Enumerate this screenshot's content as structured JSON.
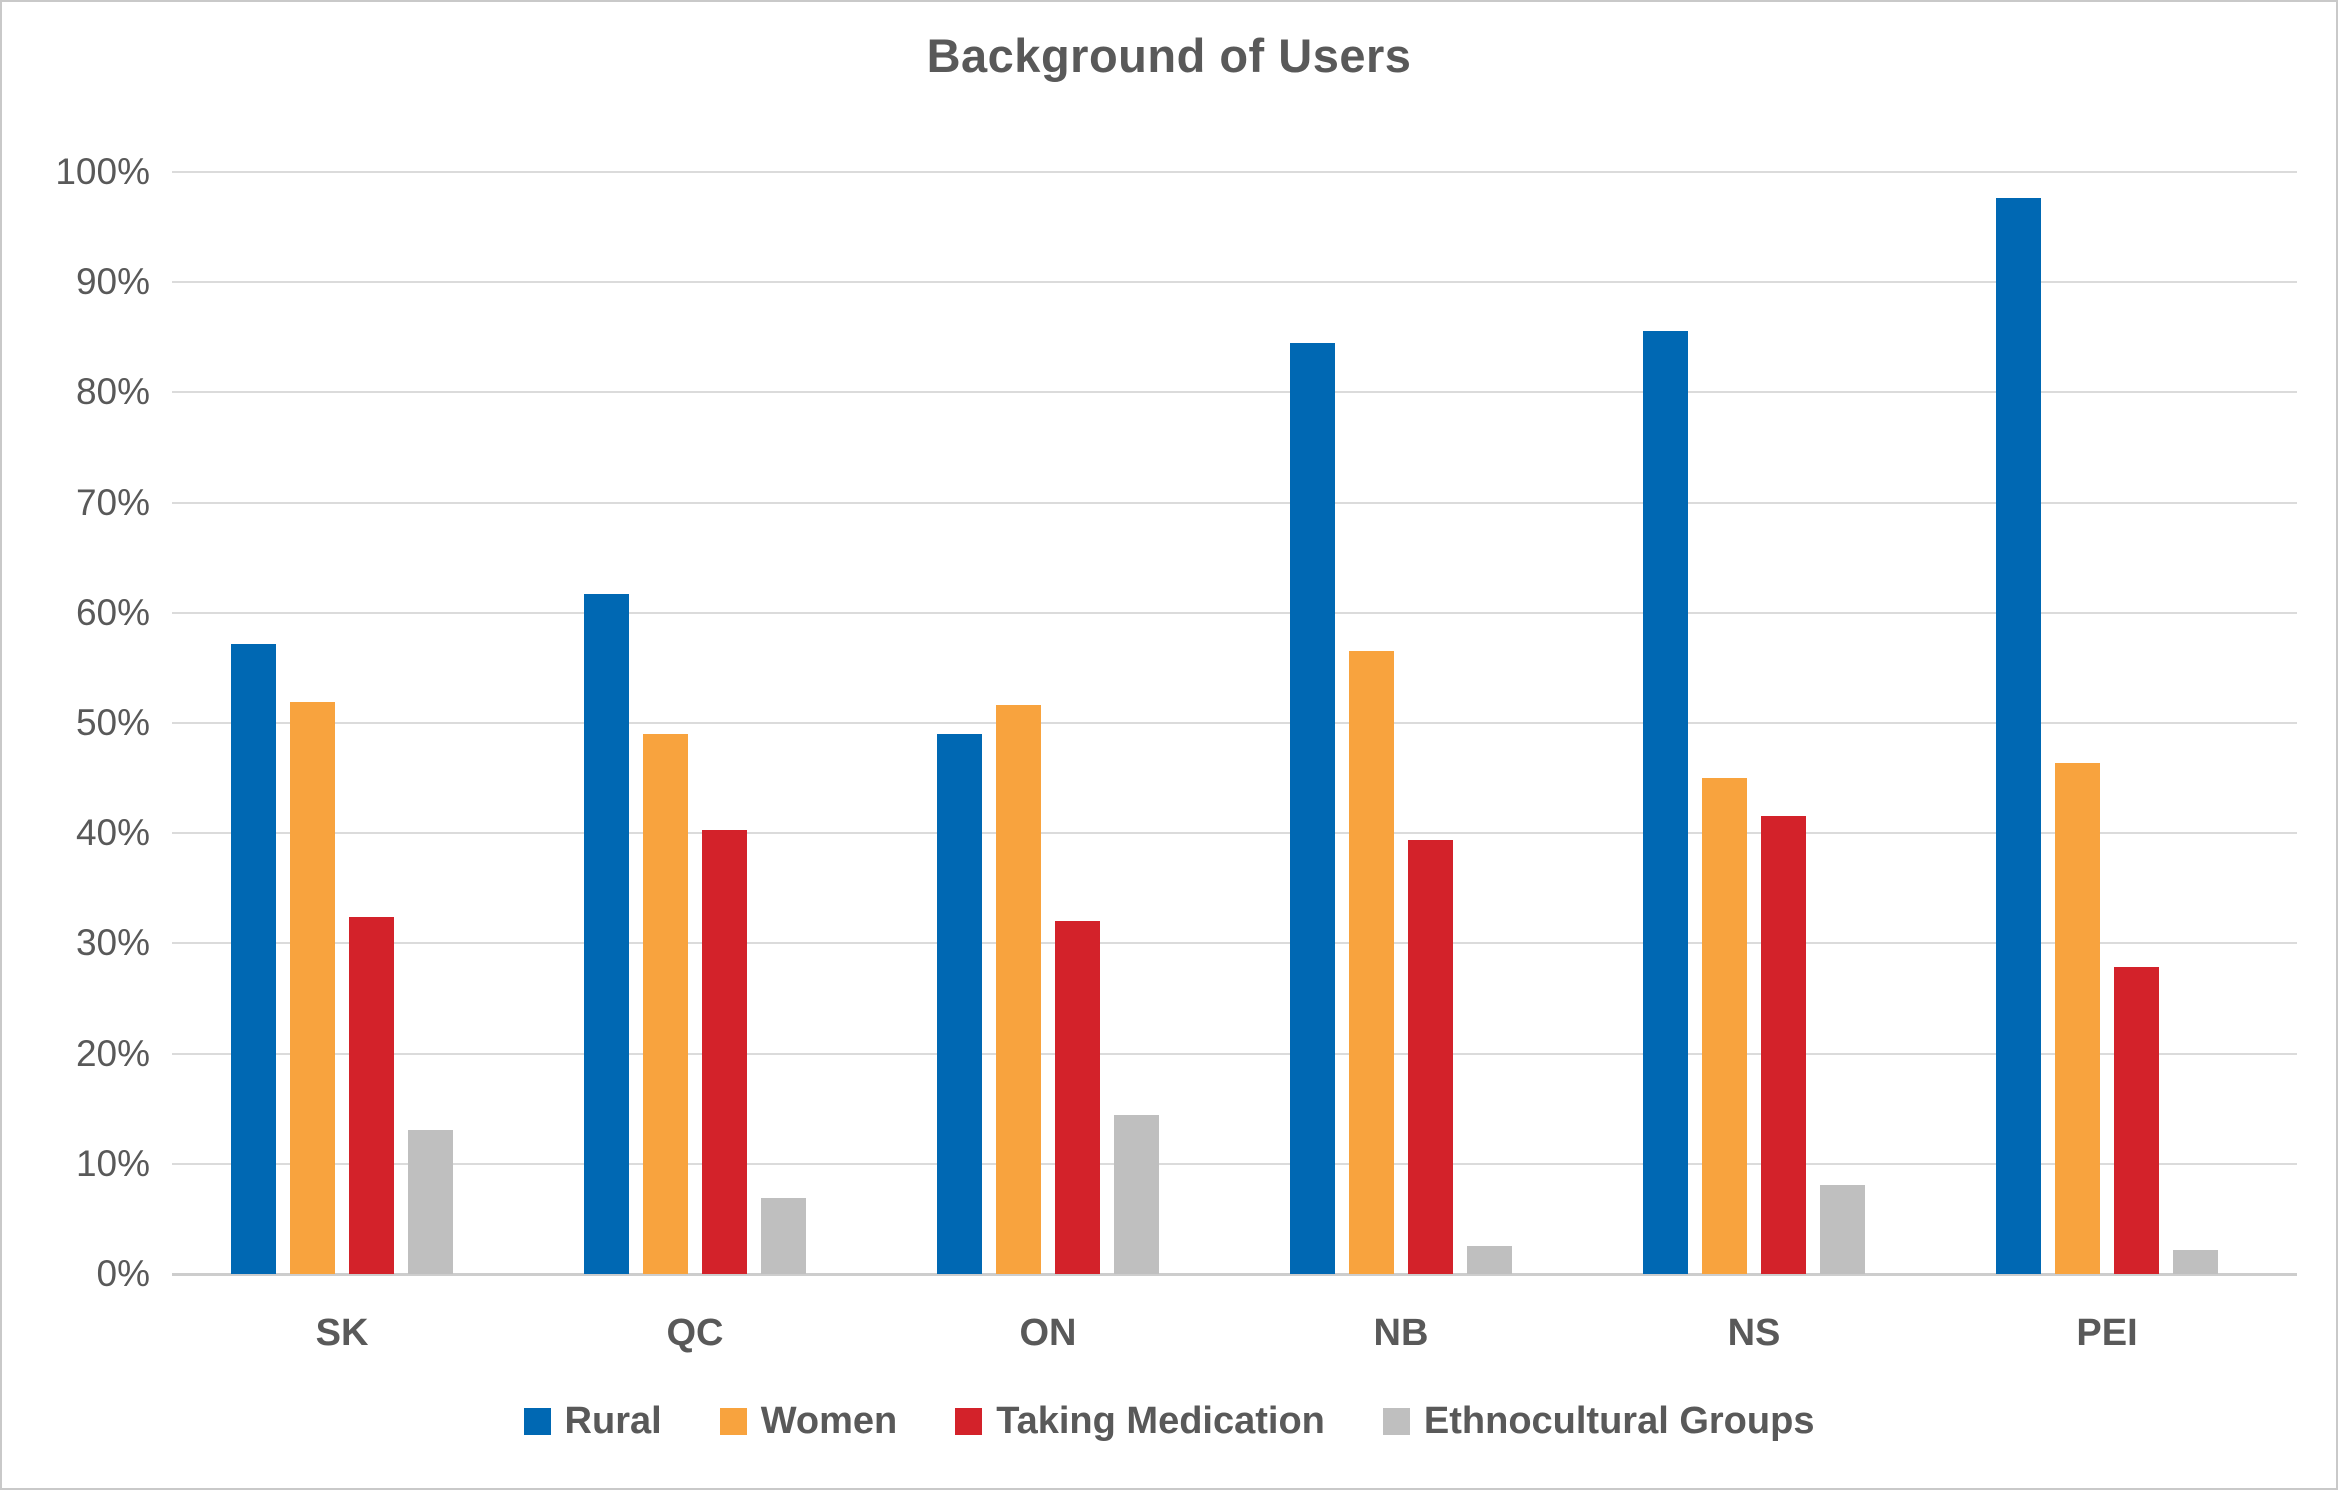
{
  "title": "Background of Users",
  "colors": {
    "rural_blue": "#0068B3",
    "women_orange": "#F8A33E",
    "medication_red": "#D3222A",
    "ethnocultural_gray": "#BFBFBF",
    "gridline": "#DBDBDB",
    "axis_line": "#CDCDCD",
    "text": "#595959"
  },
  "y_axis": {
    "min": 0,
    "max": 100,
    "step": 10,
    "tick_labels": [
      "0%",
      "10%",
      "20%",
      "30%",
      "40%",
      "50%",
      "60%",
      "70%",
      "80%",
      "90%",
      "100%"
    ]
  },
  "chart_data": {
    "type": "bar",
    "title": "Background of Users",
    "categories": [
      "SK",
      "QC",
      "ON",
      "NB",
      "NS",
      "PEI"
    ],
    "series": [
      {
        "name": "Rural",
        "color": "#0068B3",
        "values": [
          57.2,
          61.7,
          49.0,
          84.5,
          85.6,
          97.6
        ]
      },
      {
        "name": "Women",
        "color": "#F8A33E",
        "values": [
          51.9,
          49.0,
          51.6,
          56.5,
          45.0,
          46.4
        ]
      },
      {
        "name": "Taking Medication",
        "color": "#D3222A",
        "values": [
          32.4,
          40.3,
          32.0,
          39.4,
          41.6,
          27.9
        ]
      },
      {
        "name": "Ethnocultural Groups",
        "color": "#BFBFBF",
        "values": [
          13.1,
          6.9,
          14.4,
          2.5,
          8.1,
          2.2
        ]
      }
    ],
    "ylim": [
      0,
      100
    ],
    "grid": true,
    "legend_position": "bottom"
  }
}
